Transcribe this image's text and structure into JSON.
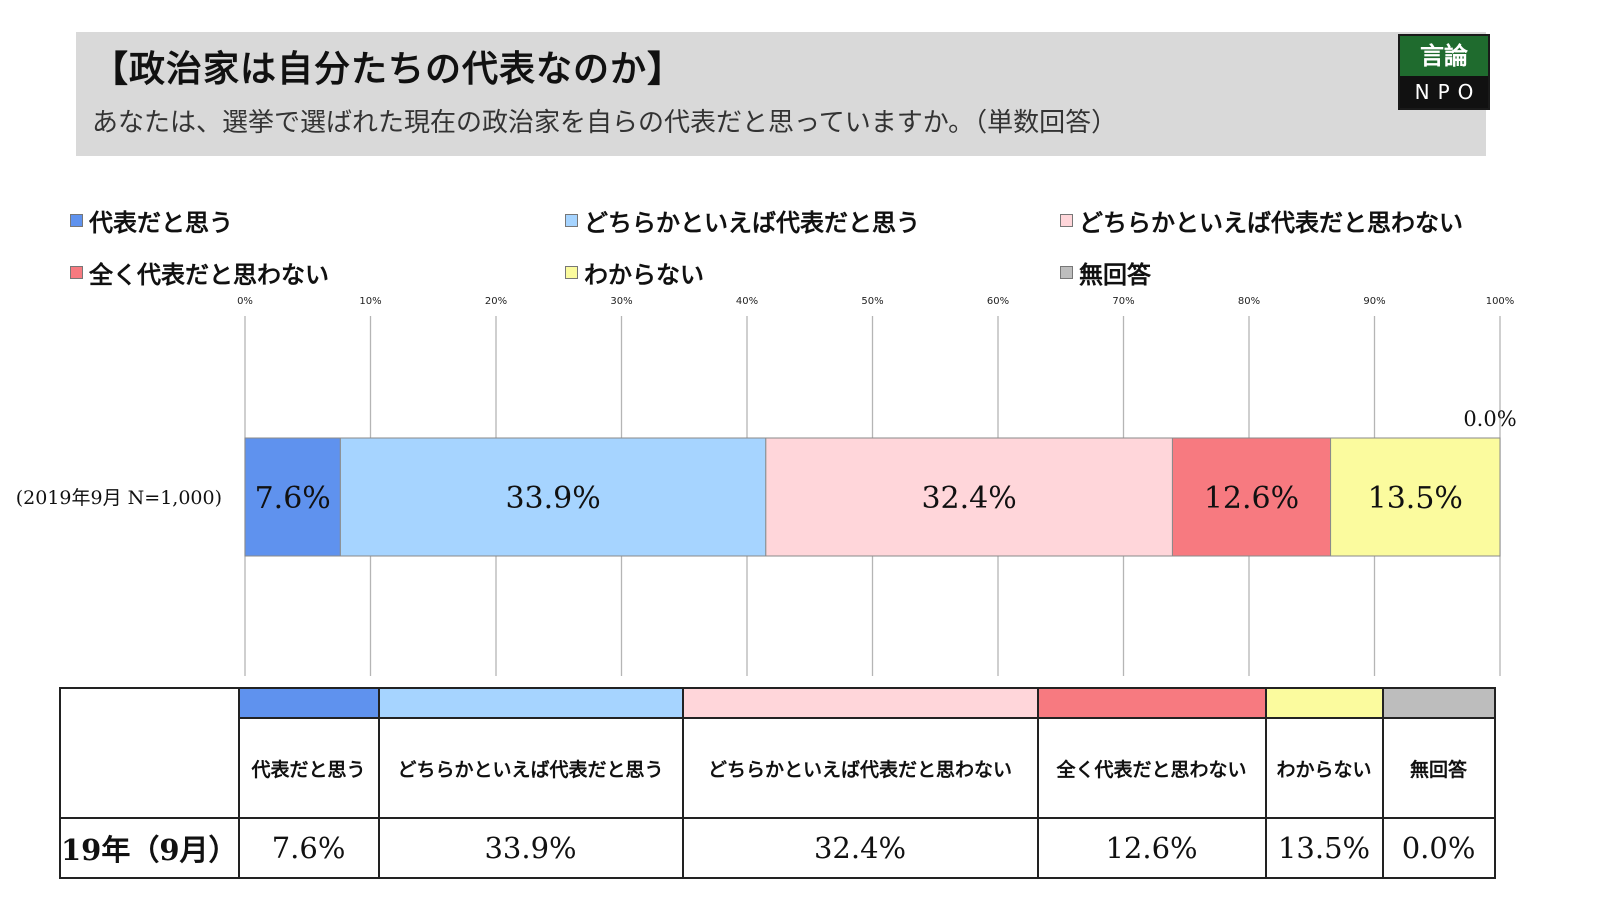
{
  "header": {
    "title": "【政治家は自分たちの代表なのか】",
    "subtitle": "あなたは、選挙で選ばれた現在の政治家を自らの代表だと思っていますか。（単数回答）"
  },
  "logo": {
    "top": "言論",
    "bottom": "NPO"
  },
  "colors": [
    "#5f92ee",
    "#a6d4ff",
    "#ffd6da",
    "#f77a80",
    "#fbfb9e",
    "#bdbdbd"
  ],
  "chart_data": {
    "type": "bar",
    "orientation": "horizontal-stacked-100",
    "categories": [
      "(2019年9月 N=1,000)"
    ],
    "series": [
      {
        "name": "代表だと思う",
        "values": [
          7.6
        ]
      },
      {
        "name": "どちらかといえば代表だと思う",
        "values": [
          33.9
        ]
      },
      {
        "name": "どちらかといえば代表だと思わない",
        "values": [
          32.4
        ]
      },
      {
        "name": "全く代表だと思わない",
        "values": [
          12.6
        ]
      },
      {
        "name": "わからない",
        "values": [
          13.5
        ]
      },
      {
        "name": "無回答",
        "values": [
          0.0
        ]
      }
    ],
    "value_labels": [
      "7.6%",
      "33.9%",
      "32.4%",
      "12.6%",
      "13.5%",
      "0.0%"
    ],
    "xticks": [
      "0%",
      "10%",
      "20%",
      "30%",
      "40%",
      "50%",
      "60%",
      "70%",
      "80%",
      "90%",
      "100%"
    ],
    "xlim": [
      0,
      100
    ],
    "grid": true,
    "legend_position": "top"
  },
  "table": {
    "row_label": "19年（9月）",
    "headers": [
      "代表だと思う",
      "どちらかといえば代表だと思う",
      "どちらかといえば代表だと思わない",
      "全く代表だと思わない",
      "わからない",
      "無回答"
    ],
    "values": [
      "7.6%",
      "33.9%",
      "32.4%",
      "12.6%",
      "13.5%",
      "0.0%"
    ]
  }
}
